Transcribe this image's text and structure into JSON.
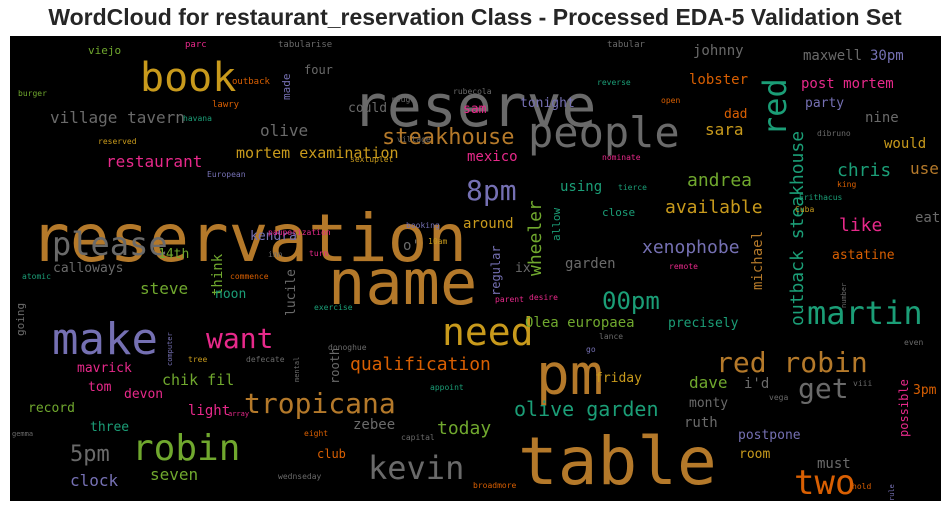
{
  "title": "WordCloud for restaurant_reservation Class - Processed EDA-5 Validation Set",
  "chart_data": {
    "type": "wordcloud",
    "title": "WordCloud for restaurant_reservation Class - Processed EDA-5 Validation Set",
    "background": "#000000",
    "colormap": "Dark2",
    "palette": {
      "orange": "#b4792a",
      "gray": "#6a6a6a",
      "green": "#70a82e",
      "teal": "#1b9e77",
      "purple": "#7570b3",
      "pink": "#e7298a",
      "rust": "#d95f02",
      "gold": "#c89a1c"
    },
    "words": [
      {
        "text": "reservation",
        "color": "orange"
      },
      {
        "text": "reserve",
        "color": "gray"
      },
      {
        "text": "name",
        "color": "orange"
      },
      {
        "text": "table",
        "color": "orange"
      },
      {
        "text": "pm",
        "color": "orange"
      },
      {
        "text": "people",
        "color": "gray"
      },
      {
        "text": "make",
        "color": "purple"
      },
      {
        "text": "book",
        "color": "gold"
      },
      {
        "text": "need",
        "color": "gold"
      },
      {
        "text": "robin",
        "color": "green"
      },
      {
        "text": "please",
        "color": "gray"
      },
      {
        "text": "martin",
        "color": "teal"
      },
      {
        "text": "red robin",
        "color": "orange"
      },
      {
        "text": "two",
        "color": "rust"
      },
      {
        "text": "kevin",
        "color": "gray"
      },
      {
        "text": "tropicana",
        "color": "orange"
      },
      {
        "text": "red",
        "color": "teal"
      },
      {
        "text": "want",
        "color": "pink"
      },
      {
        "text": "get",
        "color": "gray"
      },
      {
        "text": "8pm",
        "color": "purple"
      },
      {
        "text": "steakhouse",
        "color": "orange"
      },
      {
        "text": "outback steakhouse",
        "color": "teal"
      },
      {
        "text": "5pm",
        "color": "gray"
      },
      {
        "text": "olive garden",
        "color": "teal"
      },
      {
        "text": "00pm",
        "color": "teal"
      },
      {
        "text": "qualification",
        "color": "rust"
      },
      {
        "text": "available",
        "color": "gold"
      },
      {
        "text": "today",
        "color": "green"
      },
      {
        "text": "xenophobe",
        "color": "purple"
      },
      {
        "text": "village tavern",
        "color": "gray"
      },
      {
        "text": "wheeler",
        "color": "green"
      },
      {
        "text": "andrea",
        "color": "green"
      },
      {
        "text": "chris",
        "color": "teal"
      },
      {
        "text": "like",
        "color": "pink"
      },
      {
        "text": "dave",
        "color": "green"
      },
      {
        "text": "restaurant",
        "color": "pink"
      },
      {
        "text": "mortem examination",
        "color": "gold"
      },
      {
        "text": "olive",
        "color": "gray"
      },
      {
        "text": "sara",
        "color": "gold"
      },
      {
        "text": "seven",
        "color": "green"
      },
      {
        "text": "michael",
        "color": "orange"
      },
      {
        "text": "chik fil",
        "color": "green"
      },
      {
        "text": "steve",
        "color": "green"
      },
      {
        "text": "clock",
        "color": "purple"
      },
      {
        "text": "Olea europaea",
        "color": "green"
      },
      {
        "text": "johnny",
        "color": "gray"
      },
      {
        "text": "post mortem",
        "color": "pink"
      },
      {
        "text": "30pm",
        "color": "purple"
      },
      {
        "text": "lobster",
        "color": "rust"
      },
      {
        "text": "maxwell",
        "color": "gray"
      },
      {
        "text": "use",
        "color": "orange"
      },
      {
        "text": "around",
        "color": "gold"
      },
      {
        "text": "garden",
        "color": "gray"
      },
      {
        "text": "think",
        "color": "green"
      },
      {
        "text": "light",
        "color": "pink"
      },
      {
        "text": "ruth",
        "color": "gray"
      },
      {
        "text": "zebee",
        "color": "gray"
      },
      {
        "text": "must",
        "color": "gray"
      },
      {
        "text": "using",
        "color": "teal"
      },
      {
        "text": "mexico",
        "color": "pink"
      },
      {
        "text": "postpone",
        "color": "purple"
      },
      {
        "text": "precisely",
        "color": "teal"
      },
      {
        "text": "nine",
        "color": "gray"
      },
      {
        "text": "would",
        "color": "gold"
      },
      {
        "text": "tonight",
        "color": "purple"
      },
      {
        "text": "party",
        "color": "purple"
      },
      {
        "text": "dad",
        "color": "rust"
      },
      {
        "text": "sam",
        "color": "pink"
      },
      {
        "text": "could",
        "color": "gray"
      },
      {
        "text": "eat",
        "color": "gray"
      },
      {
        "text": "astatine",
        "color": "rust"
      },
      {
        "text": "kendra",
        "color": "purple"
      },
      {
        "text": "14th",
        "color": "green"
      },
      {
        "text": "noon",
        "color": "teal"
      },
      {
        "text": "lucile",
        "color": "gray"
      },
      {
        "text": "calloways",
        "color": "gray"
      },
      {
        "text": "regular",
        "color": "purple"
      },
      {
        "text": "ix",
        "color": "gray"
      },
      {
        "text": "mavrick",
        "color": "pink"
      },
      {
        "text": "devon",
        "color": "pink"
      },
      {
        "text": "tom",
        "color": "pink"
      },
      {
        "text": "record",
        "color": "green"
      },
      {
        "text": "three",
        "color": "teal"
      },
      {
        "text": "friday",
        "color": "gold"
      },
      {
        "text": "monty",
        "color": "gray"
      },
      {
        "text": "room",
        "color": "gold"
      },
      {
        "text": "club",
        "color": "rust"
      },
      {
        "text": "i'd",
        "color": "gray"
      },
      {
        "text": "possible",
        "color": "pink"
      },
      {
        "text": "3pm",
        "color": "rust"
      },
      {
        "text": "rooth",
        "color": "gray"
      },
      {
        "text": "allow",
        "color": "teal"
      },
      {
        "text": "close",
        "color": "teal"
      },
      {
        "text": "o'",
        "color": "gray"
      },
      {
        "text": "four",
        "color": "gray"
      },
      {
        "text": "made",
        "color": "purple"
      },
      {
        "text": "going",
        "color": "gray"
      },
      {
        "text": "viejo",
        "color": "green"
      },
      {
        "text": "parc",
        "color": "pink"
      },
      {
        "text": "tabularise",
        "color": "gray"
      },
      {
        "text": "tabular",
        "color": "gray"
      },
      {
        "text": "burger",
        "color": "green"
      },
      {
        "text": "outback",
        "color": "rust"
      },
      {
        "text": "lawry",
        "color": "rust"
      },
      {
        "text": "havana",
        "color": "teal"
      },
      {
        "text": "reserved",
        "color": "gold"
      },
      {
        "text": "rouge",
        "color": "gray"
      },
      {
        "text": "rubecola",
        "color": "gray"
      },
      {
        "text": "reverse",
        "color": "teal"
      },
      {
        "text": "open",
        "color": "rust"
      },
      {
        "text": "dibruno",
        "color": "gray"
      },
      {
        "text": "village",
        "color": "gray"
      },
      {
        "text": "sextuplet",
        "color": "gold"
      },
      {
        "text": "nominate",
        "color": "pink"
      },
      {
        "text": "European",
        "color": "purple"
      },
      {
        "text": "tierce",
        "color": "teal"
      },
      {
        "text": "king",
        "color": "rust"
      },
      {
        "text": "Erithacus",
        "color": "teal"
      },
      {
        "text": "Cuba",
        "color": "gold"
      },
      {
        "text": "booking",
        "color": "purple"
      },
      {
        "text": "pauperization",
        "color": "pink"
      },
      {
        "text": "10am",
        "color": "gold"
      },
      {
        "text": "inn",
        "color": "gray"
      },
      {
        "text": "turn",
        "color": "pink"
      },
      {
        "text": "remote",
        "color": "pink"
      },
      {
        "text": "atomic",
        "color": "teal"
      },
      {
        "text": "commence",
        "color": "rust"
      },
      {
        "text": "parent",
        "color": "pink"
      },
      {
        "text": "desire",
        "color": "pink"
      },
      {
        "text": "number",
        "color": "gray"
      },
      {
        "text": "exercise",
        "color": "teal"
      },
      {
        "text": "computer",
        "color": "purple"
      },
      {
        "text": "donoghue",
        "color": "gray"
      },
      {
        "text": "lance",
        "color": "gray"
      },
      {
        "text": "tree",
        "color": "gold"
      },
      {
        "text": "defecate",
        "color": "gray"
      },
      {
        "text": "mental",
        "color": "gray"
      },
      {
        "text": "go",
        "color": "purple"
      },
      {
        "text": "appoint",
        "color": "teal"
      },
      {
        "text": "array",
        "color": "pink"
      },
      {
        "text": "even",
        "color": "gray"
      },
      {
        "text": "viii",
        "color": "gray"
      },
      {
        "text": "vega",
        "color": "gray"
      },
      {
        "text": "gemma",
        "color": "gray"
      },
      {
        "text": "eight",
        "color": "rust"
      },
      {
        "text": "capital",
        "color": "gray"
      },
      {
        "text": "wednseday",
        "color": "gray"
      },
      {
        "text": "broadmore",
        "color": "rust"
      },
      {
        "text": "rule",
        "color": "purple"
      },
      {
        "text": "hold",
        "color": "rust"
      }
    ]
  }
}
